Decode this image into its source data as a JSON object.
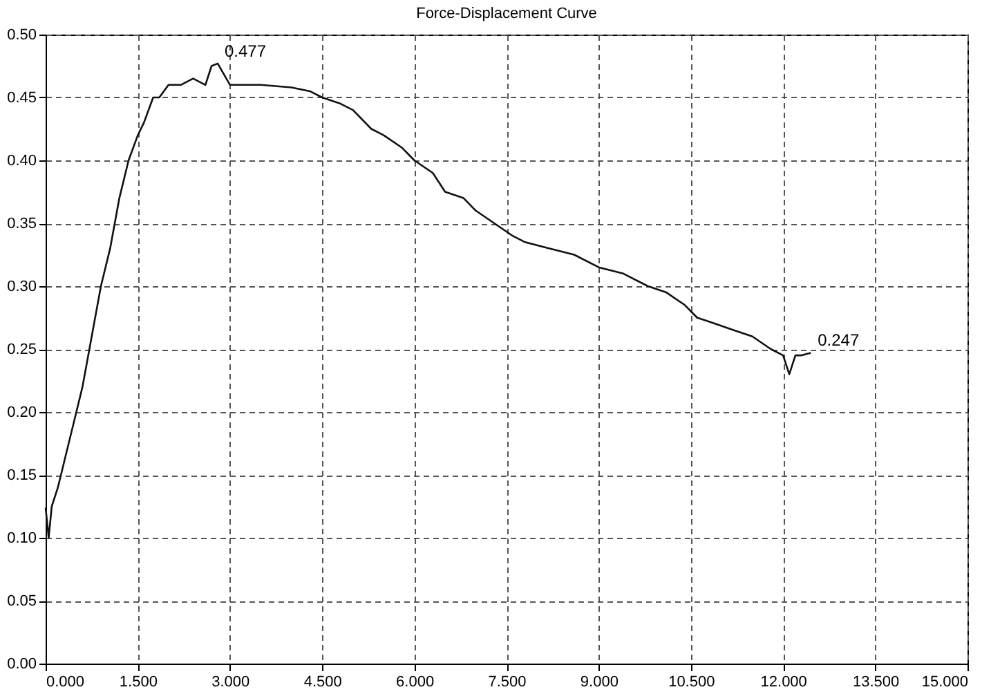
{
  "chart_data": {
    "type": "line",
    "title": "Force-Displacement Curve",
    "x": [
      0,
      0.05,
      0.1,
      0.2,
      0.3,
      0.45,
      0.6,
      0.75,
      0.9,
      1.05,
      1.2,
      1.35,
      1.5,
      1.6,
      1.75,
      1.85,
      2.0,
      2.2,
      2.4,
      2.6,
      2.7,
      2.8,
      3.0,
      3.5,
      4.0,
      4.3,
      4.5,
      4.8,
      5.0,
      5.3,
      5.5,
      5.8,
      6.0,
      6.3,
      6.5,
      6.8,
      7.0,
      7.3,
      7.6,
      7.8,
      8.2,
      8.6,
      9.0,
      9.4,
      9.8,
      10.1,
      10.4,
      10.6,
      10.9,
      11.2,
      11.5,
      11.8,
      12.0,
      12.1,
      12.2,
      12.3,
      12.45
    ],
    "series": [
      {
        "color": "#111111",
        "values": [
          0.124,
          0.1,
          0.125,
          0.14,
          0.16,
          0.19,
          0.22,
          0.26,
          0.3,
          0.33,
          0.37,
          0.4,
          0.42,
          0.43,
          0.45,
          0.45,
          0.46,
          0.46,
          0.465,
          0.46,
          0.475,
          0.477,
          0.46,
          0.46,
          0.458,
          0.455,
          0.45,
          0.445,
          0.44,
          0.425,
          0.42,
          0.41,
          0.4,
          0.39,
          0.375,
          0.37,
          0.36,
          0.35,
          0.34,
          0.335,
          0.33,
          0.325,
          0.315,
          0.31,
          0.3,
          0.295,
          0.285,
          0.275,
          0.27,
          0.265,
          0.26,
          0.25,
          0.245,
          0.23,
          0.245,
          0.245,
          0.247
        ]
      }
    ],
    "xlim": [
      0,
      15
    ],
    "xticks": [
      {
        "value": 0,
        "label": "0.000"
      },
      {
        "value": 1.5,
        "label": "1.500"
      },
      {
        "value": 3,
        "label": "3.000"
      },
      {
        "value": 4.5,
        "label": "4.500"
      },
      {
        "value": 6,
        "label": "6.000"
      },
      {
        "value": 7.5,
        "label": "7.500"
      },
      {
        "value": 9,
        "label": "9.000"
      },
      {
        "value": 10.5,
        "label": "10.500"
      },
      {
        "value": 12,
        "label": "12.000"
      },
      {
        "value": 13.5,
        "label": "13.500"
      },
      {
        "value": 15,
        "label": "15.000"
      }
    ],
    "ylim": [
      0,
      0.5
    ],
    "yticks": [
      {
        "value": 0,
        "label": "0.00"
      },
      {
        "value": 0.05,
        "label": "0.05"
      },
      {
        "value": 0.1,
        "label": "0.10"
      },
      {
        "value": 0.15,
        "label": "0.15"
      },
      {
        "value": 0.2,
        "label": "0.20"
      },
      {
        "value": 0.25,
        "label": "0.25"
      },
      {
        "value": 0.3,
        "label": "0.30"
      },
      {
        "value": 0.35,
        "label": "0.35"
      },
      {
        "value": 0.4,
        "label": "0.40"
      },
      {
        "value": 0.45,
        "label": "0.45"
      },
      {
        "value": 0.5,
        "label": "0.50"
      }
    ],
    "grid": true,
    "line_style": "solid",
    "annotations": [
      {
        "text": "0.477",
        "x": 2.8,
        "y": 0.477
      },
      {
        "text": "0.247",
        "x": 12.45,
        "y": 0.247
      }
    ]
  }
}
